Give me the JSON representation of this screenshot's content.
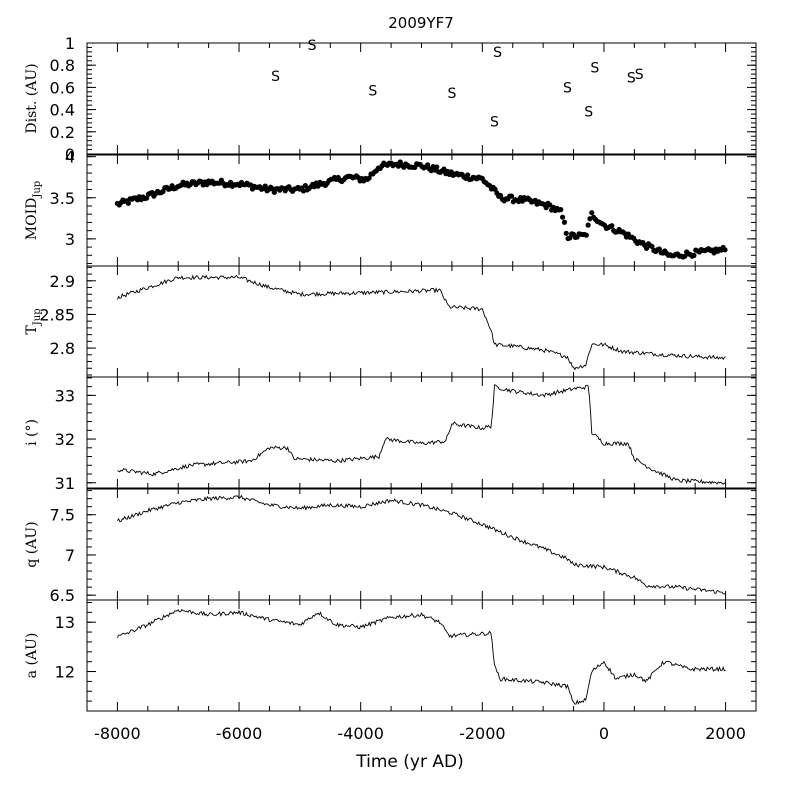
{
  "title": "2009YF7",
  "xlabel": "Time (yr AD)",
  "x_ticks": [
    "-8000",
    "-6000",
    "-4000",
    "-2000",
    "0",
    "2000"
  ],
  "chart_data": [
    {
      "type": "scatter",
      "id": "dist",
      "ylabel": "Dist. (AU)",
      "ylim": [
        0,
        1
      ],
      "xlim": [
        -8500,
        2500
      ],
      "ticks": [
        "0",
        "0.2",
        "0.4",
        "0.6",
        "0.8",
        "1"
      ],
      "marker": "S",
      "points": [
        {
          "x": -5400,
          "y": 0.71
        },
        {
          "x": -4800,
          "y": 0.99
        },
        {
          "x": -3800,
          "y": 0.58
        },
        {
          "x": -2500,
          "y": 0.56
        },
        {
          "x": -1800,
          "y": 0.3
        },
        {
          "x": -1750,
          "y": 0.93
        },
        {
          "x": -600,
          "y": 0.61
        },
        {
          "x": -250,
          "y": 0.39
        },
        {
          "x": -150,
          "y": 0.79
        },
        {
          "x": 450,
          "y": 0.7
        },
        {
          "x": 580,
          "y": 0.73
        }
      ]
    },
    {
      "type": "scatter",
      "id": "moid",
      "ylabel_main": "MOID",
      "ylabel_sub": "Jup",
      "ylim": [
        2.67,
        4.02
      ],
      "xlim": [
        -8500,
        2500
      ],
      "ticks": [
        "3",
        "3.5",
        "4"
      ],
      "tick_values": [
        3,
        3.5,
        4
      ],
      "profile": [
        [
          -8000,
          3.42
        ],
        [
          -7500,
          3.52
        ],
        [
          -7000,
          3.65
        ],
        [
          -6500,
          3.69
        ],
        [
          -6000,
          3.67
        ],
        [
          -5500,
          3.6
        ],
        [
          -5000,
          3.6
        ],
        [
          -4500,
          3.7
        ],
        [
          -4200,
          3.75
        ],
        [
          -3900,
          3.72
        ],
        [
          -3700,
          3.88
        ],
        [
          -3400,
          3.91
        ],
        [
          -3000,
          3.89
        ],
        [
          -2500,
          3.79
        ],
        [
          -2000,
          3.73
        ],
        [
          -1850,
          3.62
        ],
        [
          -1700,
          3.5
        ],
        [
          -1300,
          3.47
        ],
        [
          -900,
          3.4
        ],
        [
          -700,
          3.32
        ],
        [
          -600,
          3.03
        ],
        [
          -300,
          3.04
        ],
        [
          -200,
          3.3
        ],
        [
          0,
          3.17
        ],
        [
          300,
          3.08
        ],
        [
          600,
          2.95
        ],
        [
          900,
          2.85
        ],
        [
          1100,
          2.79
        ],
        [
          1400,
          2.82
        ],
        [
          2000,
          2.87
        ]
      ]
    },
    {
      "type": "line",
      "id": "tjup",
      "ylabel_main": "T",
      "ylabel_sub": "Jup",
      "ylim": [
        2.757,
        2.922
      ],
      "xlim": [
        -8500,
        2500
      ],
      "ticks": [
        "2.8",
        "2.85",
        "2.9"
      ],
      "tick_values": [
        2.8,
        2.85,
        2.9
      ],
      "profile": [
        [
          -8000,
          2.875
        ],
        [
          -7500,
          2.89
        ],
        [
          -7000,
          2.905
        ],
        [
          -6000,
          2.905
        ],
        [
          -5500,
          2.89
        ],
        [
          -5000,
          2.88
        ],
        [
          -4000,
          2.882
        ],
        [
          -3000,
          2.885
        ],
        [
          -2700,
          2.886
        ],
        [
          -2550,
          2.861
        ],
        [
          -2000,
          2.858
        ],
        [
          -1850,
          2.825
        ],
        [
          -1800,
          2.805
        ],
        [
          -1500,
          2.803
        ],
        [
          -1000,
          2.797
        ],
        [
          -600,
          2.787
        ],
        [
          -500,
          2.77
        ],
        [
          -300,
          2.775
        ],
        [
          -200,
          2.806
        ],
        [
          0,
          2.805
        ],
        [
          300,
          2.795
        ],
        [
          1000,
          2.79
        ],
        [
          2000,
          2.785
        ]
      ]
    },
    {
      "type": "line",
      "id": "incl",
      "ylabel": "i (°)",
      "ylim": [
        30.88,
        33.42
      ],
      "xlim": [
        -8500,
        2500
      ],
      "ticks": [
        "31",
        "32",
        "33"
      ],
      "tick_values": [
        31,
        32,
        33
      ],
      "profile": [
        [
          -8000,
          31.3
        ],
        [
          -7400,
          31.2
        ],
        [
          -6800,
          31.4
        ],
        [
          -5800,
          31.5
        ],
        [
          -5500,
          31.8
        ],
        [
          -5200,
          31.8
        ],
        [
          -5100,
          31.55
        ],
        [
          -4400,
          31.5
        ],
        [
          -3700,
          31.6
        ],
        [
          -3600,
          32.0
        ],
        [
          -3000,
          31.9
        ],
        [
          -2600,
          31.95
        ],
        [
          -2500,
          32.35
        ],
        [
          -2000,
          32.25
        ],
        [
          -1850,
          32.3
        ],
        [
          -1800,
          33.2
        ],
        [
          -1500,
          33.1
        ],
        [
          -1000,
          33.0
        ],
        [
          -500,
          33.15
        ],
        [
          -250,
          33.2
        ],
        [
          -200,
          32.15
        ],
        [
          0,
          31.9
        ],
        [
          400,
          31.9
        ],
        [
          500,
          31.55
        ],
        [
          800,
          31.3
        ],
        [
          1200,
          31.05
        ],
        [
          2000,
          31.0
        ]
      ]
    },
    {
      "type": "line",
      "id": "q",
      "ylabel": "q (AU)",
      "ylim": [
        6.44,
        7.82
      ],
      "xlim": [
        -8500,
        2500
      ],
      "ticks": [
        "6.5",
        "7",
        "7.5"
      ],
      "tick_values": [
        6.5,
        7,
        7.5
      ],
      "profile": [
        [
          -8000,
          7.42
        ],
        [
          -7500,
          7.55
        ],
        [
          -7000,
          7.65
        ],
        [
          -6500,
          7.7
        ],
        [
          -6000,
          7.72
        ],
        [
          -5500,
          7.62
        ],
        [
          -5000,
          7.58
        ],
        [
          -4500,
          7.62
        ],
        [
          -4000,
          7.6
        ],
        [
          -3500,
          7.68
        ],
        [
          -3000,
          7.62
        ],
        [
          -2500,
          7.52
        ],
        [
          -2000,
          7.38
        ],
        [
          -1500,
          7.22
        ],
        [
          -1000,
          7.08
        ],
        [
          -600,
          6.95
        ],
        [
          -500,
          6.88
        ],
        [
          0,
          6.85
        ],
        [
          500,
          6.72
        ],
        [
          700,
          6.62
        ],
        [
          1200,
          6.6
        ],
        [
          2000,
          6.53
        ]
      ]
    },
    {
      "type": "line",
      "id": "a",
      "ylabel": "a (AU)",
      "ylim": [
        11.2,
        13.45
      ],
      "xlim": [
        -8500,
        2500
      ],
      "ticks": [
        "12",
        "13"
      ],
      "tick_values": [
        12,
        13
      ],
      "profile": [
        [
          -8000,
          12.7
        ],
        [
          -7500,
          12.95
        ],
        [
          -7000,
          13.25
        ],
        [
          -6500,
          13.15
        ],
        [
          -6000,
          13.2
        ],
        [
          -5500,
          13.05
        ],
        [
          -5000,
          12.95
        ],
        [
          -4700,
          13.2
        ],
        [
          -4400,
          12.95
        ],
        [
          -4000,
          12.9
        ],
        [
          -3500,
          13.1
        ],
        [
          -3000,
          13.15
        ],
        [
          -2700,
          13.0
        ],
        [
          -2550,
          12.72
        ],
        [
          -1850,
          12.78
        ],
        [
          -1800,
          12.1
        ],
        [
          -1700,
          11.85
        ],
        [
          -1000,
          11.78
        ],
        [
          -600,
          11.7
        ],
        [
          -500,
          11.35
        ],
        [
          -300,
          11.42
        ],
        [
          -200,
          12.0
        ],
        [
          0,
          12.2
        ],
        [
          200,
          11.85
        ],
        [
          500,
          11.95
        ],
        [
          700,
          11.8
        ],
        [
          900,
          12.1
        ],
        [
          1000,
          12.2
        ],
        [
          1400,
          12.05
        ],
        [
          2000,
          12.05
        ]
      ]
    }
  ]
}
